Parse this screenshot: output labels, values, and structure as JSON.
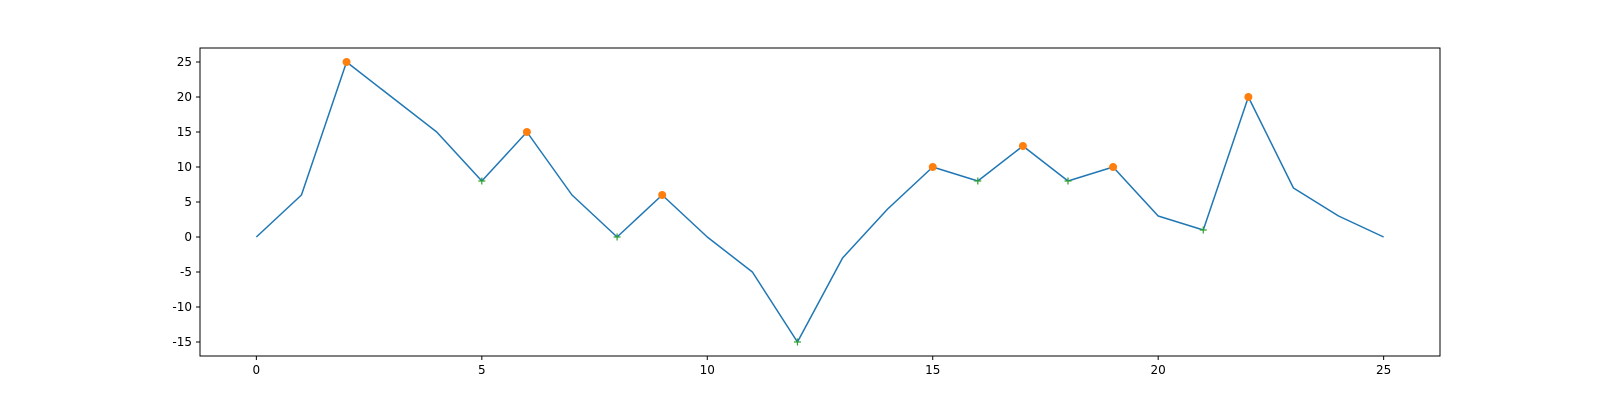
{
  "chart_data": {
    "type": "line",
    "title": "",
    "xlabel": "",
    "ylabel": "",
    "xlim": [
      -1.25,
      26.25
    ],
    "ylim": [
      -17,
      27
    ],
    "x_ticks": [
      0,
      5,
      10,
      15,
      20,
      25
    ],
    "x_tick_labels": [
      "0",
      "5",
      "10",
      "15",
      "20",
      "25"
    ],
    "y_ticks": [
      -15,
      -10,
      -5,
      0,
      5,
      10,
      15,
      20,
      25
    ],
    "y_tick_labels": [
      "-15",
      "-10",
      "-5",
      "0",
      "5",
      "10",
      "15",
      "20",
      "25"
    ],
    "grid": false,
    "legend": "none",
    "series": [
      {
        "kind": "line",
        "color": "#1f77b4",
        "x": [
          0,
          1,
          2,
          3,
          4,
          5,
          6,
          7,
          8,
          9,
          10,
          11,
          12,
          13,
          14,
          15,
          16,
          17,
          18,
          19,
          20,
          21,
          22,
          23,
          24,
          25
        ],
        "y": [
          0,
          6,
          25,
          20,
          15,
          8,
          15,
          6,
          0,
          6,
          0,
          -5,
          -15,
          -3,
          4,
          10,
          8,
          13,
          8,
          10,
          3,
          1,
          20,
          7,
          3,
          0
        ]
      },
      {
        "kind": "peaks",
        "marker": "circle",
        "color": "#ff7f0e",
        "x": [
          2,
          6,
          9,
          15,
          17,
          19,
          22
        ],
        "y": [
          25,
          15,
          6,
          10,
          13,
          10,
          20
        ]
      },
      {
        "kind": "valleys",
        "marker": "plus",
        "color": "#2ca02c",
        "x": [
          5,
          8,
          12,
          16,
          18,
          21
        ],
        "y": [
          8,
          0,
          -15,
          8,
          8,
          1
        ]
      }
    ]
  }
}
